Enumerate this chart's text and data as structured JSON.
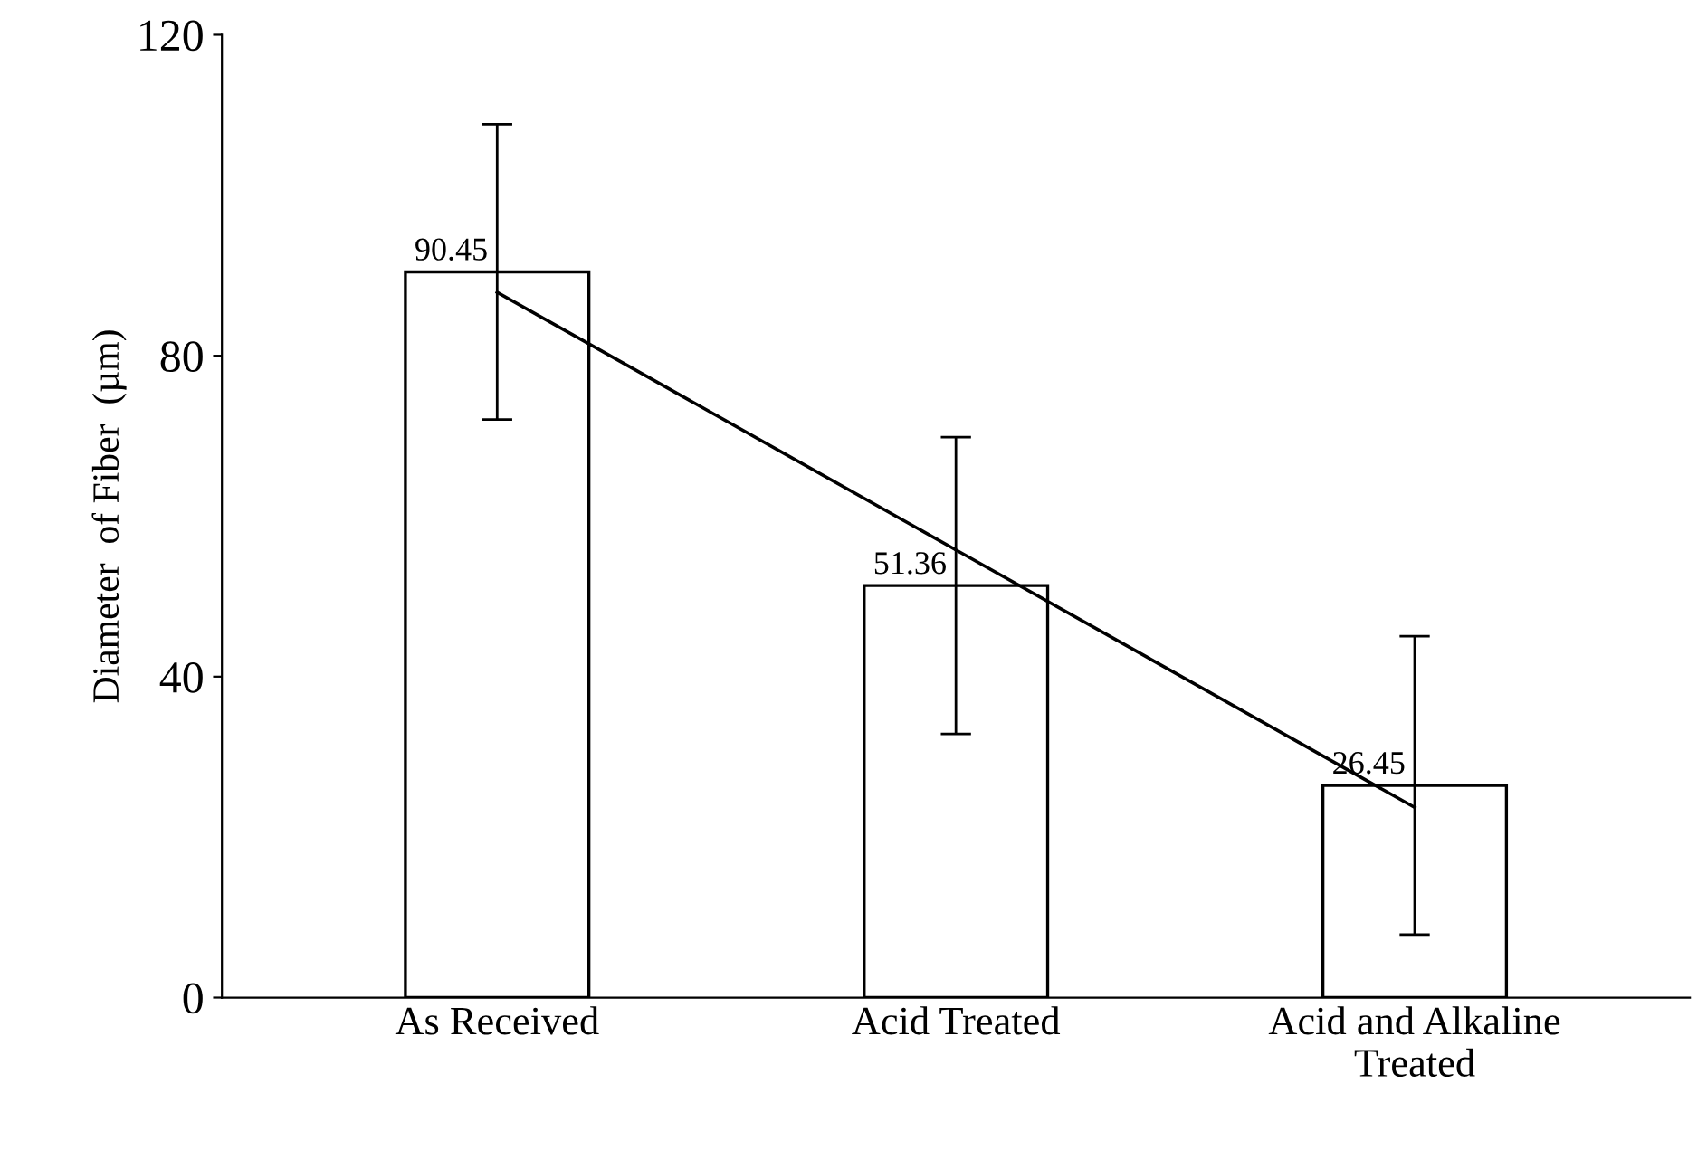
{
  "chart_data": {
    "type": "bar",
    "ylabel": "Diameter  of Fiber  (µm)",
    "categories": [
      "As Received",
      "Acid Treated",
      "Acid and Alkaline\nTreated"
    ],
    "series": [
      {
        "type": "bar",
        "color": "#ffffff",
        "values": [
          90.45,
          51.36,
          26.45
        ],
        "errors": [
          18.4,
          18.5,
          18.6
        ],
        "value_labels": [
          "90.45",
          "51.36",
          "26.45"
        ]
      },
      {
        "type": "line",
        "color": "#000000",
        "values": [
          87.9,
          55.8,
          23.7
        ]
      }
    ],
    "ylim": [
      0,
      120
    ],
    "yticks": [
      0,
      40,
      80,
      120
    ],
    "grid": false,
    "legend": false
  }
}
